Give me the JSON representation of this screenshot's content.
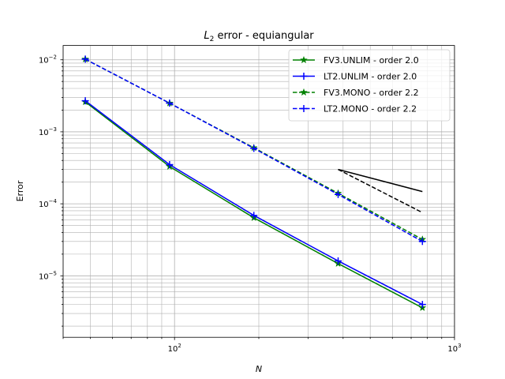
{
  "chart_data": {
    "type": "line",
    "title_main": "L",
    "title_sub": "2",
    "title_rest": " error - equiangular",
    "xlabel": "N",
    "ylabel": "Error",
    "xscale": "log",
    "yscale": "log",
    "xlim": [
      40,
      1000
    ],
    "ylim": [
      1.4e-06,
      0.0158
    ],
    "grid": true,
    "legend_position": "upper right",
    "x_ticks": [
      {
        "value": 100,
        "base": "10",
        "exp": "2"
      },
      {
        "value": 1000,
        "base": "10",
        "exp": "3"
      }
    ],
    "y_ticks": [
      {
        "value": 1e-05,
        "base": "10",
        "exp": "−5"
      },
      {
        "value": 0.0001,
        "base": "10",
        "exp": "−4"
      },
      {
        "value": 0.001,
        "base": "10",
        "exp": "−3"
      },
      {
        "value": 0.01,
        "base": "10",
        "exp": "−2"
      }
    ],
    "series": [
      {
        "name": "FV3.UNLIM - order 2.0",
        "color": "#008000",
        "dash": "solid",
        "marker": "star",
        "x": [
          48,
          96,
          192,
          384,
          768
        ],
        "y": [
          0.0026,
          0.00033,
          6.4e-05,
          1.48e-05,
          3.6e-06
        ]
      },
      {
        "name": "LT2.UNLIM - order 2.0",
        "color": "#0000ff",
        "dash": "solid",
        "marker": "plus",
        "x": [
          48,
          96,
          192,
          384,
          768
        ],
        "y": [
          0.0027,
          0.00035,
          6.9e-05,
          1.61e-05,
          4e-06
        ]
      },
      {
        "name": "FV3.MONO - order 2.2",
        "color": "#008000",
        "dash": "dashed",
        "marker": "star",
        "x": [
          48,
          96,
          192,
          384,
          768
        ],
        "y": [
          0.0102,
          0.0025,
          0.0006,
          0.00014,
          3.2e-05
        ]
      },
      {
        "name": "LT2.MONO - order 2.2",
        "color": "#0000ff",
        "dash": "dashed",
        "marker": "plus",
        "x": [
          48,
          96,
          192,
          384,
          768
        ],
        "y": [
          0.0102,
          0.0025,
          0.00059,
          0.000135,
          3e-05
        ]
      }
    ],
    "reference_lines": [
      {
        "color": "#000000",
        "dash": "solid",
        "x": [
          384,
          768
        ],
        "y": [
          0.0003,
          0.000148
        ]
      },
      {
        "color": "#000000",
        "dash": "dashed",
        "x": [
          384,
          768
        ],
        "y": [
          0.0003,
          7.55e-05
        ]
      }
    ]
  }
}
